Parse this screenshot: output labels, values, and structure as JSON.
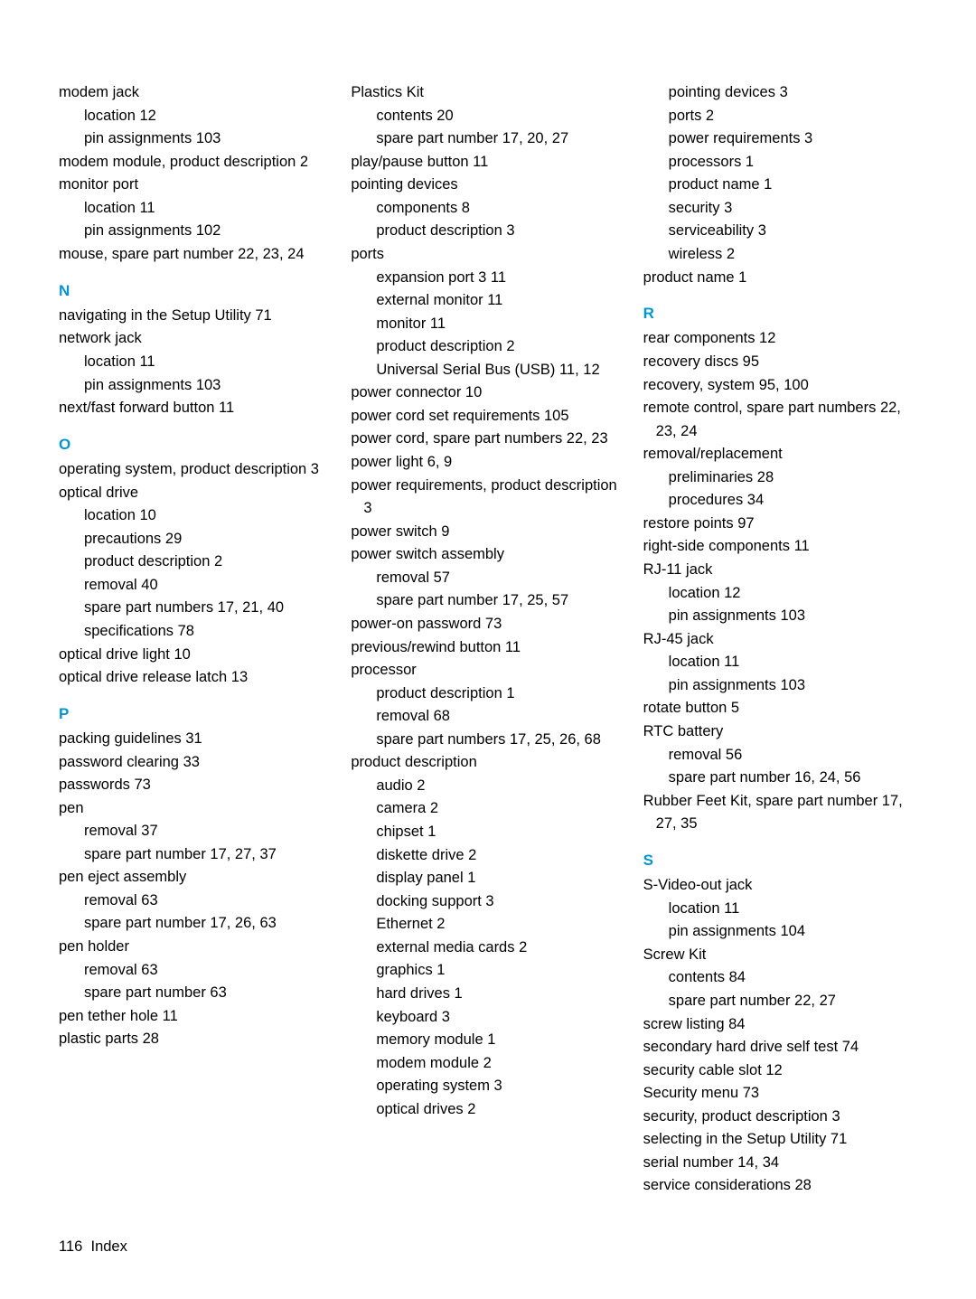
{
  "colors": {
    "accent": "#0096d6",
    "text": "#000000",
    "background": "#ffffff"
  },
  "typography": {
    "body_fontsize_pt": 12,
    "letter_fontsize_pt": 13,
    "line_height": 1.55,
    "font_family": "Segoe UI"
  },
  "footer": {
    "page_number": "116",
    "label": "Index"
  },
  "col1": [
    {
      "t": "entry",
      "text": "modem jack"
    },
    {
      "t": "sub",
      "text": "location   12"
    },
    {
      "t": "sub",
      "text": "pin assignments   103"
    },
    {
      "t": "entry",
      "text": "modem module, product description   2"
    },
    {
      "t": "entry",
      "text": "monitor port"
    },
    {
      "t": "sub",
      "text": "location   11"
    },
    {
      "t": "sub",
      "text": "pin assignments   102"
    },
    {
      "t": "entry",
      "text": "mouse, spare part number   22, 23, 24"
    },
    {
      "t": "letter",
      "text": "N"
    },
    {
      "t": "entry",
      "text": "navigating in the Setup Utility   71"
    },
    {
      "t": "entry",
      "text": "network jack"
    },
    {
      "t": "sub",
      "text": "location   11"
    },
    {
      "t": "sub",
      "text": "pin assignments   103"
    },
    {
      "t": "entry",
      "text": "next/fast forward button   11"
    },
    {
      "t": "letter",
      "text": "O"
    },
    {
      "t": "entry",
      "text": "operating system, product description   3"
    },
    {
      "t": "entry",
      "text": "optical drive"
    },
    {
      "t": "sub",
      "text": "location   10"
    },
    {
      "t": "sub",
      "text": "precautions   29"
    },
    {
      "t": "sub",
      "text": "product description   2"
    },
    {
      "t": "sub",
      "text": "removal   40"
    },
    {
      "t": "sub",
      "text": "spare part numbers   17, 21, 40"
    },
    {
      "t": "sub",
      "text": "specifications   78"
    },
    {
      "t": "entry",
      "text": "optical drive light   10"
    },
    {
      "t": "entry",
      "text": "optical drive release latch   13"
    },
    {
      "t": "letter",
      "text": "P"
    },
    {
      "t": "entry",
      "text": "packing guidelines   31"
    },
    {
      "t": "entry",
      "text": "password clearing   33"
    },
    {
      "t": "entry",
      "text": "passwords   73"
    },
    {
      "t": "entry",
      "text": "pen"
    },
    {
      "t": "sub",
      "text": "removal   37"
    },
    {
      "t": "sub",
      "text": "spare part number   17, 27, 37"
    },
    {
      "t": "entry",
      "text": "pen eject assembly"
    },
    {
      "t": "sub",
      "text": "removal   63"
    },
    {
      "t": "sub",
      "text": "spare part number   17, 26, 63"
    },
    {
      "t": "entry",
      "text": "pen holder"
    },
    {
      "t": "sub",
      "text": "removal   63"
    },
    {
      "t": "sub",
      "text": "spare part number   63"
    },
    {
      "t": "entry",
      "text": "pen tether hole   11"
    },
    {
      "t": "entry",
      "text": "plastic parts   28"
    }
  ],
  "col2": [
    {
      "t": "entry",
      "text": "Plastics Kit"
    },
    {
      "t": "sub",
      "text": "contents   20"
    },
    {
      "t": "sub",
      "text": "spare part number   17, 20, 27"
    },
    {
      "t": "entry",
      "text": "play/pause button   11"
    },
    {
      "t": "entry",
      "text": "pointing devices"
    },
    {
      "t": "sub",
      "text": "components   8"
    },
    {
      "t": "sub",
      "text": "product description   3"
    },
    {
      "t": "entry",
      "text": "ports"
    },
    {
      "t": "sub",
      "text": "expansion port 3   11"
    },
    {
      "t": "sub",
      "text": "external monitor   11"
    },
    {
      "t": "sub",
      "text": "monitor   11"
    },
    {
      "t": "sub",
      "text": "product description   2"
    },
    {
      "t": "sub",
      "text": "Universal Serial Bus (USB)   11, 12"
    },
    {
      "t": "entry",
      "text": "power connector   10"
    },
    {
      "t": "entry",
      "text": "power cord set requirements   105"
    },
    {
      "t": "entry",
      "text": "power cord, spare part numbers   22, 23"
    },
    {
      "t": "entry",
      "text": "power light   6, 9"
    },
    {
      "t": "entry",
      "text": "power requirements, product description   3"
    },
    {
      "t": "entry",
      "text": "power switch   9"
    },
    {
      "t": "entry",
      "text": "power switch assembly"
    },
    {
      "t": "sub",
      "text": "removal   57"
    },
    {
      "t": "sub",
      "text": "spare part number   17, 25, 57"
    },
    {
      "t": "entry",
      "text": "power-on password   73"
    },
    {
      "t": "entry",
      "text": "previous/rewind button   11"
    },
    {
      "t": "entry",
      "text": "processor"
    },
    {
      "t": "sub",
      "text": "product description   1"
    },
    {
      "t": "sub",
      "text": "removal   68"
    },
    {
      "t": "sub",
      "text": "spare part numbers   17, 25, 26, 68"
    },
    {
      "t": "entry",
      "text": "product description"
    },
    {
      "t": "sub",
      "text": "audio   2"
    },
    {
      "t": "sub",
      "text": "camera   2"
    },
    {
      "t": "sub",
      "text": "chipset   1"
    },
    {
      "t": "sub",
      "text": "diskette drive   2"
    },
    {
      "t": "sub",
      "text": "display panel   1"
    },
    {
      "t": "sub",
      "text": "docking support   3"
    },
    {
      "t": "sub",
      "text": "Ethernet   2"
    },
    {
      "t": "sub",
      "text": "external media cards   2"
    },
    {
      "t": "sub",
      "text": "graphics   1"
    },
    {
      "t": "sub",
      "text": "hard drives   1"
    },
    {
      "t": "sub",
      "text": "keyboard   3"
    },
    {
      "t": "sub",
      "text": "memory module   1"
    },
    {
      "t": "sub",
      "text": "modem module   2"
    },
    {
      "t": "sub",
      "text": "operating system   3"
    },
    {
      "t": "sub",
      "text": "optical drives   2"
    }
  ],
  "col3": [
    {
      "t": "sub",
      "text": "pointing devices   3"
    },
    {
      "t": "sub",
      "text": "ports   2"
    },
    {
      "t": "sub",
      "text": "power requirements   3"
    },
    {
      "t": "sub",
      "text": "processors   1"
    },
    {
      "t": "sub",
      "text": "product name   1"
    },
    {
      "t": "sub",
      "text": "security   3"
    },
    {
      "t": "sub",
      "text": "serviceability   3"
    },
    {
      "t": "sub",
      "text": "wireless   2"
    },
    {
      "t": "entry",
      "text": "product name   1"
    },
    {
      "t": "letter",
      "text": "R"
    },
    {
      "t": "entry",
      "text": "rear components   12"
    },
    {
      "t": "entry",
      "text": "recovery discs   95"
    },
    {
      "t": "entry",
      "text": "recovery, system   95, 100"
    },
    {
      "t": "entry",
      "text": "remote control, spare part numbers   22, 23, 24"
    },
    {
      "t": "entry",
      "text": "removal/replacement"
    },
    {
      "t": "sub",
      "text": "preliminaries   28"
    },
    {
      "t": "sub",
      "text": "procedures   34"
    },
    {
      "t": "entry",
      "text": "restore points   97"
    },
    {
      "t": "entry",
      "text": "right-side components   11"
    },
    {
      "t": "entry",
      "text": "RJ-11 jack"
    },
    {
      "t": "sub",
      "text": "location   12"
    },
    {
      "t": "sub",
      "text": "pin assignments   103"
    },
    {
      "t": "entry",
      "text": "RJ-45 jack"
    },
    {
      "t": "sub",
      "text": "location   11"
    },
    {
      "t": "sub",
      "text": "pin assignments   103"
    },
    {
      "t": "entry",
      "text": "rotate button   5"
    },
    {
      "t": "entry",
      "text": "RTC battery"
    },
    {
      "t": "sub",
      "text": "removal   56"
    },
    {
      "t": "sub",
      "text": "spare part number   16, 24, 56"
    },
    {
      "t": "entry",
      "text": "Rubber Feet Kit, spare part number   17, 27, 35"
    },
    {
      "t": "letter",
      "text": "S"
    },
    {
      "t": "entry",
      "text": "S-Video-out jack"
    },
    {
      "t": "sub",
      "text": "location   11"
    },
    {
      "t": "sub",
      "text": "pin assignments   104"
    },
    {
      "t": "entry",
      "text": "Screw Kit"
    },
    {
      "t": "sub",
      "text": "contents   84"
    },
    {
      "t": "sub",
      "text": "spare part number   22, 27"
    },
    {
      "t": "entry",
      "text": "screw listing   84"
    },
    {
      "t": "entry",
      "text": "secondary hard drive self test   74"
    },
    {
      "t": "entry",
      "text": "security cable slot   12"
    },
    {
      "t": "entry",
      "text": "Security menu   73"
    },
    {
      "t": "entry",
      "text": "security, product description   3"
    },
    {
      "t": "entry",
      "text": "selecting in the Setup Utility   71"
    },
    {
      "t": "entry",
      "text": "serial number   14, 34"
    },
    {
      "t": "entry",
      "text": "service considerations   28"
    }
  ]
}
